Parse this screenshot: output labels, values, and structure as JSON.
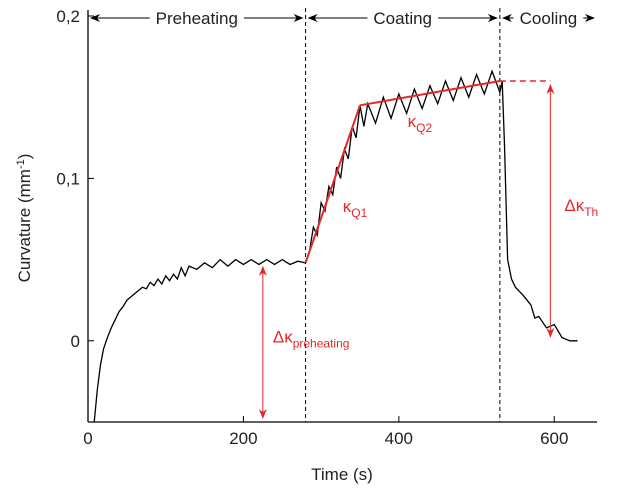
{
  "chart_data": {
    "type": "line",
    "x_label": "Time (s)",
    "y_label": {
      "text": "Curvature (mm",
      "superscript": "-1",
      "suffix": ")"
    },
    "xlim": [
      0,
      655
    ],
    "ylim": [
      -0.05,
      0.2
    ],
    "xticks": [
      0,
      200,
      400,
      600
    ],
    "yticks": [
      {
        "value": 0,
        "label": "0"
      },
      {
        "value": 0.1,
        "label": "0,1"
      },
      {
        "value": 0.2,
        "label": "0,2"
      }
    ],
    "series": [
      {
        "color": "#000000",
        "x": [
          8,
          12,
          16,
          20,
          25,
          30,
          35,
          40,
          45,
          50,
          55,
          60,
          65,
          70,
          75,
          80,
          85,
          90,
          95,
          100,
          105,
          110,
          115,
          120,
          125,
          130,
          140,
          150,
          160,
          170,
          180,
          190,
          200,
          210,
          220,
          230,
          240,
          250,
          260,
          270,
          280,
          285,
          290,
          295,
          300,
          305,
          310,
          315,
          320,
          325,
          330,
          335,
          340,
          345,
          350,
          355,
          360,
          370,
          380,
          390,
          400,
          410,
          420,
          430,
          440,
          450,
          460,
          470,
          480,
          490,
          500,
          510,
          520,
          530,
          533,
          536,
          540,
          545,
          550,
          560,
          570,
          575,
          580,
          590,
          600,
          610,
          620,
          630
        ],
        "values": [
          -0.05,
          -0.03,
          -0.015,
          -0.005,
          0.002,
          0.008,
          0.013,
          0.018,
          0.021,
          0.025,
          0.027,
          0.029,
          0.031,
          0.033,
          0.032,
          0.036,
          0.034,
          0.038,
          0.035,
          0.04,
          0.037,
          0.041,
          0.038,
          0.045,
          0.04,
          0.046,
          0.044,
          0.048,
          0.045,
          0.05,
          0.046,
          0.05,
          0.047,
          0.05,
          0.047,
          0.05,
          0.047,
          0.05,
          0.047,
          0.049,
          0.048,
          0.055,
          0.07,
          0.065,
          0.085,
          0.08,
          0.095,
          0.09,
          0.107,
          0.1,
          0.118,
          0.112,
          0.132,
          0.125,
          0.145,
          0.132,
          0.146,
          0.134,
          0.15,
          0.137,
          0.152,
          0.14,
          0.155,
          0.143,
          0.157,
          0.146,
          0.16,
          0.148,
          0.162,
          0.15,
          0.164,
          0.152,
          0.166,
          0.153,
          0.16,
          0.12,
          0.05,
          0.038,
          0.033,
          0.028,
          0.022,
          0.014,
          0.015,
          0.008,
          0.01,
          0.002,
          0,
          0
        ]
      }
    ],
    "phases": [
      {
        "label": "Preheating",
        "start": 0,
        "end": 280
      },
      {
        "label": "Coating",
        "start": 280,
        "end": 530
      },
      {
        "label": "Cooling",
        "start": 530,
        "end": 655
      }
    ],
    "fit_lines": [
      {
        "label": "κ",
        "subscript": "Q1",
        "x": [
          280,
          350
        ],
        "values": [
          0.048,
          0.145
        ]
      },
      {
        "label": "κ",
        "subscript": "Q2",
        "x": [
          350,
          530
        ],
        "values": [
          0.145,
          0.16
        ]
      }
    ],
    "level_line": {
      "x": [
        530,
        595
      ],
      "value": 0.16
    },
    "differences": [
      {
        "label": "Δκ",
        "subscript": "preheating",
        "x": 225,
        "from": -0.05,
        "to": 0.048
      },
      {
        "label": "Δκ",
        "subscript": "Th",
        "x": 595,
        "from": 0,
        "to": 0.16
      }
    ]
  }
}
